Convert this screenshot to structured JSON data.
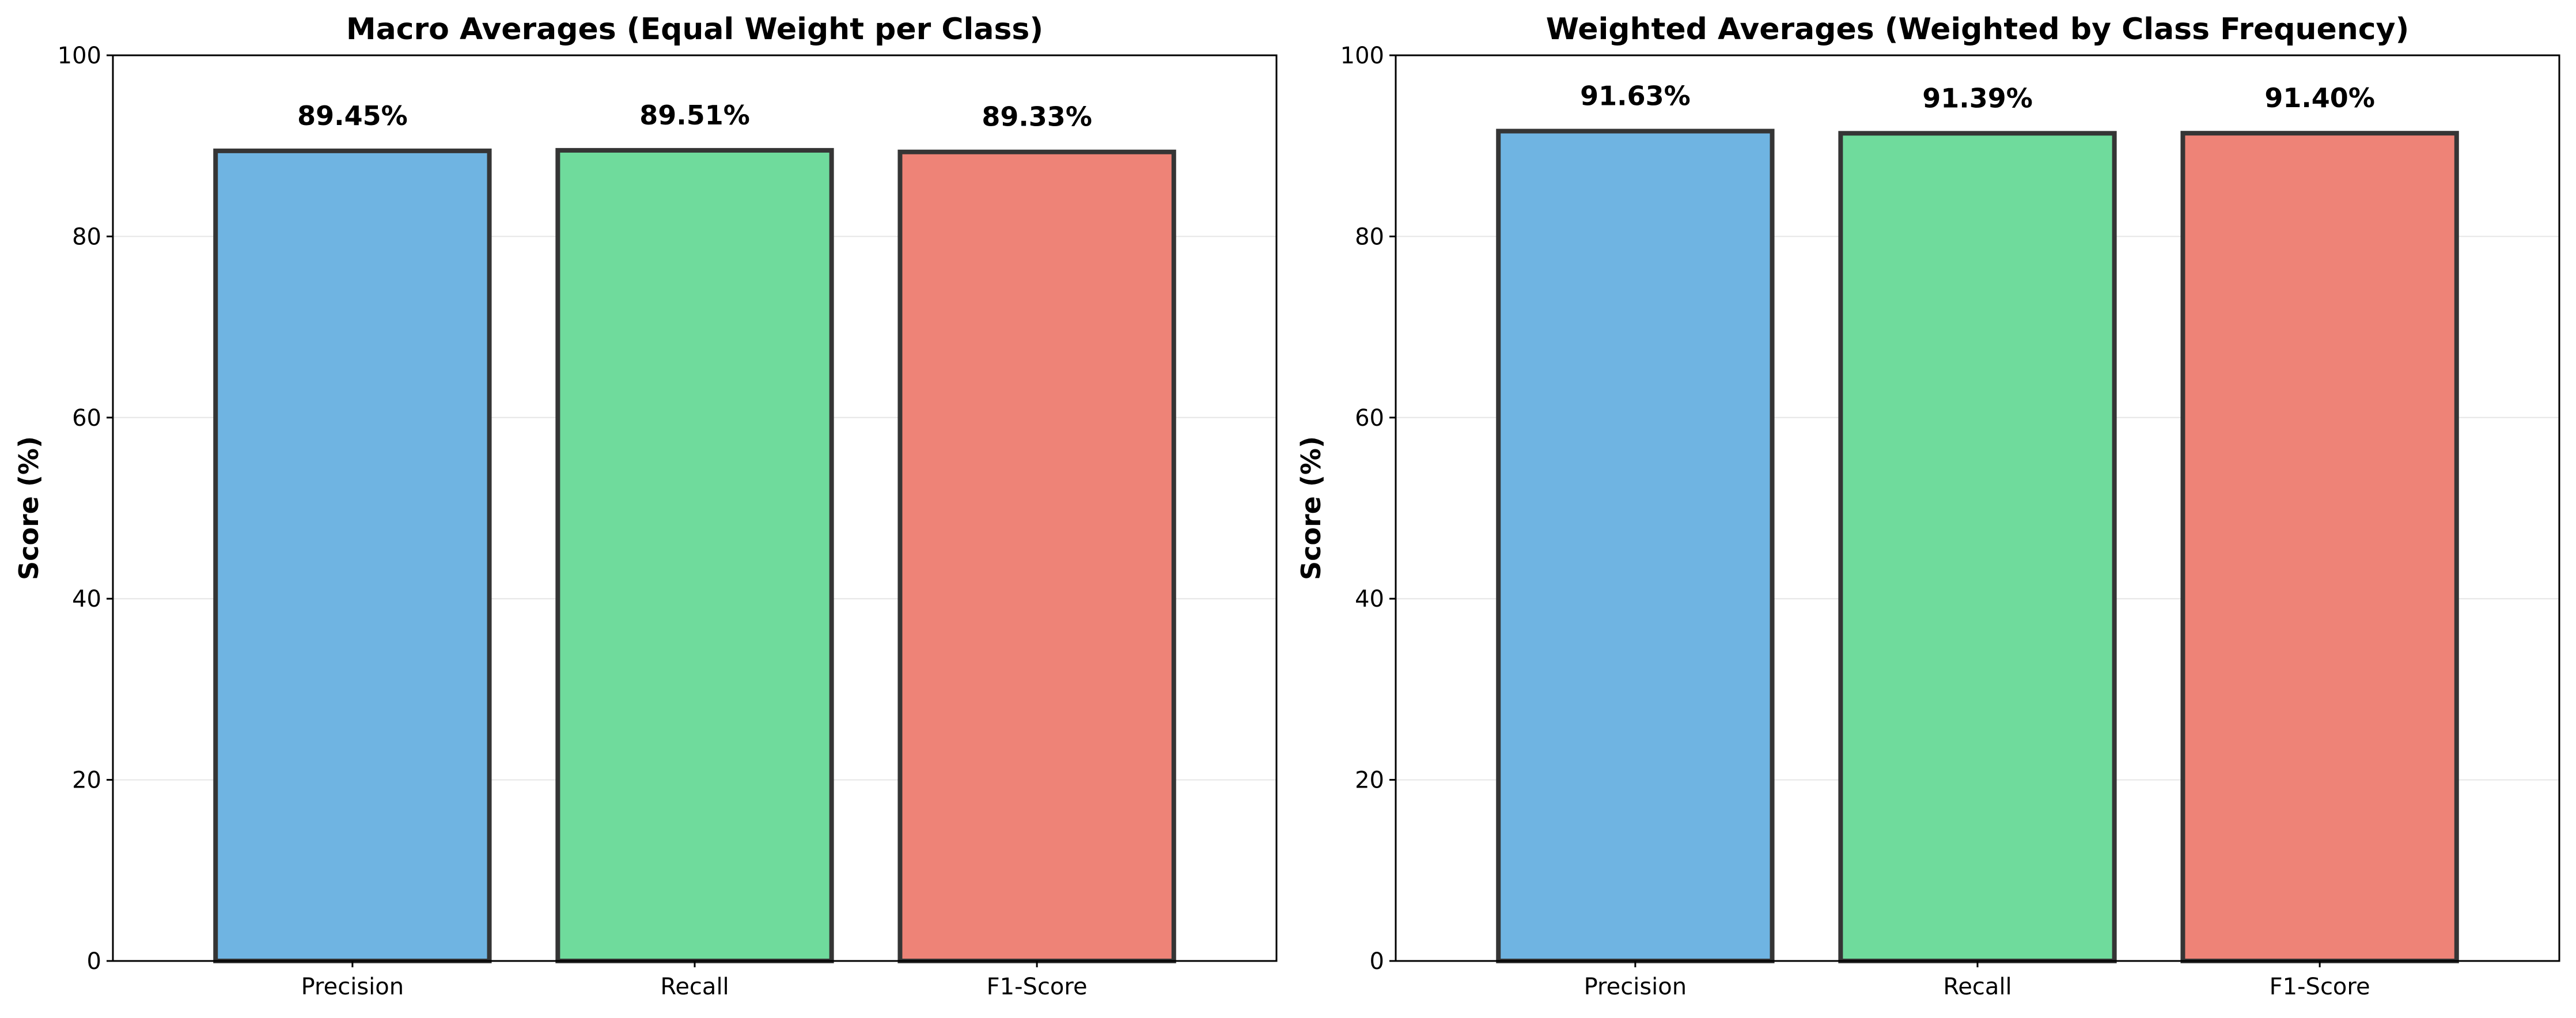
{
  "chart_data": [
    {
      "type": "bar",
      "title": "Macro Averages (Equal Weight per Class)",
      "xlabel": "",
      "ylabel": "Score (%)",
      "ylim": [
        0,
        100
      ],
      "yticks": [
        0,
        20,
        40,
        60,
        80,
        100
      ],
      "grid": "horizontal",
      "categories": [
        "Precision",
        "Recall",
        "F1-Score"
      ],
      "values": [
        89.45,
        89.51,
        89.33
      ],
      "value_labels": [
        "89.45%",
        "89.51%",
        "89.33%"
      ],
      "colors": [
        "#6fb4e2",
        "#6fdb9c",
        "#ee8377"
      ],
      "edge_color": "#353535"
    },
    {
      "type": "bar",
      "title": "Weighted Averages (Weighted by Class Frequency)",
      "xlabel": "",
      "ylabel": "Score (%)",
      "ylim": [
        0,
        100
      ],
      "yticks": [
        0,
        20,
        40,
        60,
        80,
        100
      ],
      "grid": "horizontal",
      "categories": [
        "Precision",
        "Recall",
        "F1-Score"
      ],
      "values": [
        91.63,
        91.39,
        91.4
      ],
      "value_labels": [
        "91.63%",
        "91.39%",
        "91.40%"
      ],
      "colors": [
        "#6fb4e2",
        "#6fdb9c",
        "#ee8377"
      ],
      "edge_color": "#353535"
    }
  ]
}
